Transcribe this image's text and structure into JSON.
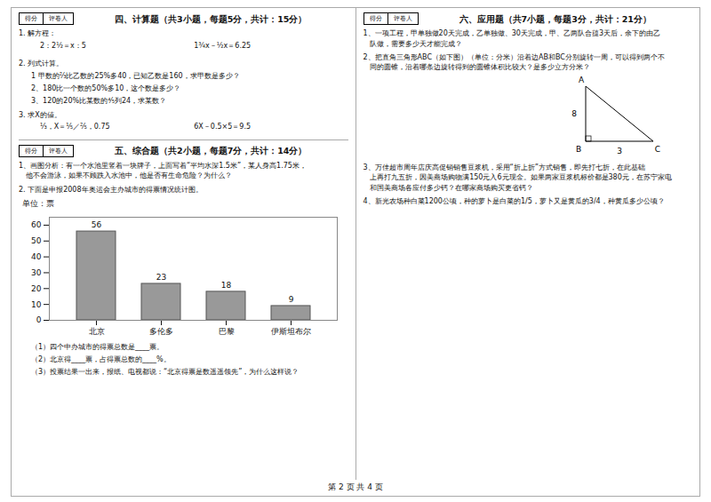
{
  "chart_data": {
    "type": "bar",
    "ylabel": "单位：票",
    "categories": [
      "北京",
      "多伦多",
      "巴黎",
      "伊斯坦布尔"
    ],
    "values": [
      56,
      23,
      18,
      9
    ],
    "color": "#999999",
    "ylim": [
      0,
      65
    ],
    "yticks": [
      0,
      10,
      20,
      30,
      40,
      50,
      60
    ],
    "grid": false,
    "data_labels": true,
    "annotations": [
      "得分",
      "评卷人",
      "四、计算题（共3小题，每题5分，共计：15分）",
      "1. 解方程：",
      "2：2½＝x：5",
      "1¾x－½x＝6.25",
      "2. 列式计算。",
      "1 甲数的⅔比乙数的25%多40，已知乙数是160，求甲数是多少？",
      "2、180比一个数的50%多10，这个数是多少？",
      "3、120的20%比某数的⁴⁄₅列24，求某数？",
      "3. 求X的値。",
      "⅓，X＝⅕／⅖，0.75",
      "6X－0.5×5＝9.5",
      "五、综合题（共2小题，每题7分，共计：14分）",
      "1、画图分析：有一个水池里竖着一块牌子，上面写着“平均水深1.5米”，某人身高1.75米，",
      "   他不会游泳，如果不顾跌入水池中，他是否有生命危险？为什么？",
      "2. 下面是申报2008年奥运会主办城市的得票情况统计图。",
      "六、应用题（共7小题，每题3分，共计：21分）",
      "1、一项工程，甲单独做20天完成，乙单独做、30天完成，甲、乙两队合䔶3天后，余下的由乙",
      "   队做，需要多少天才能完成？",
      "2、把直角三角形ABC（如下图）（单位：分米）沿着边AB和BC分别旋转一周，可以得到两个不",
      "   同的圆锥，沿着哪条边旋转得到的圆锥体积比较大？是多少立方分米？",
      "A",
      "B",
      "C",
      "8",
      "3",
      "3、万佳超市周年店庆高促销销售豆浆机，采用“折上折”方式销售，即先打七折，在此基础",
      "   上再打九五折，因美商场购物满150元入6元现金。如果两家豆浆机标价都是380元，在苏宁家电",
      "   和国美商场各应付多少钙？在哪家商场购买更省钙？",
      "4、新光农场种白菜1200公顷，种的萝卜是白菜的1/5，萝卜又是黄瓜的3/4，种黄瓜多少公顷？",
      "（1）四个中办城市的得票总数是____票。",
      "（2）北京得____票，占得票总数的____%。",
      "（3）投票结果一出来，报纸、电视都说：“北京得票是数遥遥领先”，为什么这样说？",
      "第 2 页 共 4 页"
    ]
  }
}
